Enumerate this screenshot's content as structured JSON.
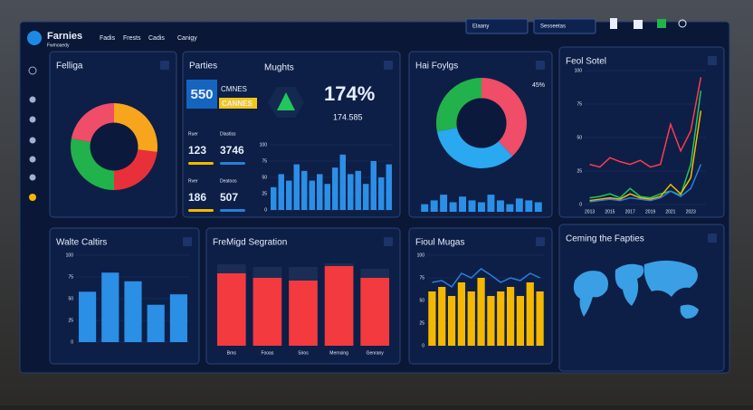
{
  "header": {
    "brand": "Farnies",
    "tagline": "Fwmoaedy",
    "nav": [
      "Fadis",
      "Frests",
      "Cadis",
      "Canigy"
    ],
    "filters": [
      "Elaany",
      "Sesseetas"
    ]
  },
  "panels": [
    {
      "title": "Felliga",
      "chart": {
        "type": "donut",
        "values": [
          27,
          23,
          28,
          22
        ],
        "colors": [
          "#f7a51c",
          "#e8303a",
          "#22b24c",
          "#ef4d68"
        ]
      }
    },
    {
      "title": "Parties",
      "subtitle": "Mughts",
      "badge": "550",
      "badge_lines": [
        "CMNES",
        "CANNES"
      ],
      "kpi": "174%",
      "kpi_sub": "174.585",
      "stats": [
        {
          "label": "Ruer",
          "value": 123
        },
        {
          "label": "Dlastiss",
          "value": 3746
        },
        {
          "label": "Rver",
          "value": 186
        },
        {
          "label": "Deatoos",
          "value": 507
        }
      ],
      "chart": {
        "type": "bar",
        "color": "#2b8fe6",
        "values": [
          35,
          55,
          45,
          70,
          60,
          45,
          55,
          40,
          65,
          85,
          55,
          60,
          40,
          75,
          50,
          70
        ],
        "ylim": [
          0,
          100
        ],
        "yticks": [
          0,
          25,
          50,
          75,
          100
        ]
      }
    },
    {
      "title": "Hai Foylgs",
      "donut": {
        "type": "donut",
        "values": [
          38,
          34,
          28
        ],
        "colors": [
          "#ef4d68",
          "#2aa8f0",
          "#22b24c"
        ],
        "label": "45%"
      },
      "chart": {
        "type": "bar",
        "color": "#2b8fe6",
        "values": [
          20,
          30,
          45,
          25,
          40,
          30,
          25,
          45,
          30,
          20,
          35,
          30,
          25
        ],
        "ylim": [
          0,
          100
        ]
      }
    },
    {
      "title": "Feol Sotel",
      "chart": {
        "type": "line",
        "categories": [
          "2013",
          null,
          "2015",
          null,
          "2017",
          null,
          "2019",
          null,
          "2021",
          null,
          "2023",
          null
        ],
        "ylim": [
          0,
          100
        ],
        "yticks": [
          0,
          25,
          50,
          75,
          100
        ],
        "series": [
          {
            "color": "#ff3b4e",
            "values": [
              30,
              28,
              35,
              32,
              30,
              33,
              28,
              30,
              60,
              40,
              55,
              95
            ]
          },
          {
            "color": "#22c55e",
            "values": [
              5,
              6,
              8,
              5,
              12,
              6,
              5,
              8,
              10,
              7,
              30,
              85
            ]
          },
          {
            "color": "#f5b800",
            "values": [
              3,
              4,
              5,
              4,
              8,
              5,
              4,
              6,
              15,
              8,
              20,
              70
            ]
          },
          {
            "color": "#2a7fd9",
            "values": [
              2,
              3,
              4,
              3,
              5,
              4,
              3,
              5,
              10,
              6,
              12,
              30
            ]
          }
        ]
      }
    },
    {
      "title": "Walte Caltirs",
      "chart": {
        "type": "bar",
        "color": "#2b8fe6",
        "values": [
          58,
          80,
          70,
          43,
          55
        ],
        "ylim": [
          0,
          100
        ],
        "yticks": [
          0,
          25,
          50,
          75,
          100
        ]
      }
    },
    {
      "title": "FreMigd Segration",
      "chart": {
        "type": "stacked_bar",
        "categories": [
          "Brns",
          "Fooas",
          "Siros",
          "Mernsing",
          "Genrany"
        ],
        "ylim": [
          0,
          100
        ],
        "series": [
          {
            "color": "#f23a3f",
            "values": [
              80,
              75,
              72,
              88,
              75
            ]
          },
          {
            "color": "#1c2d55",
            "values": [
              10,
              12,
              15,
              3,
              10
            ]
          }
        ]
      }
    },
    {
      "title": "Fioul Mugas",
      "chart": {
        "type": "bar",
        "color": "#f5b800",
        "values": [
          60,
          65,
          55,
          70,
          60,
          75,
          55,
          60,
          65,
          55,
          70,
          60
        ],
        "ylim": [
          0,
          100
        ],
        "yticks": [
          0,
          25,
          50,
          75,
          100
        ],
        "line": {
          "color": "#2a7fd9",
          "values": [
            70,
            72,
            65,
            80,
            75,
            85,
            78,
            70,
            75,
            72,
            80,
            75
          ]
        }
      }
    },
    {
      "title": "Ceming the Fapties"
    }
  ]
}
